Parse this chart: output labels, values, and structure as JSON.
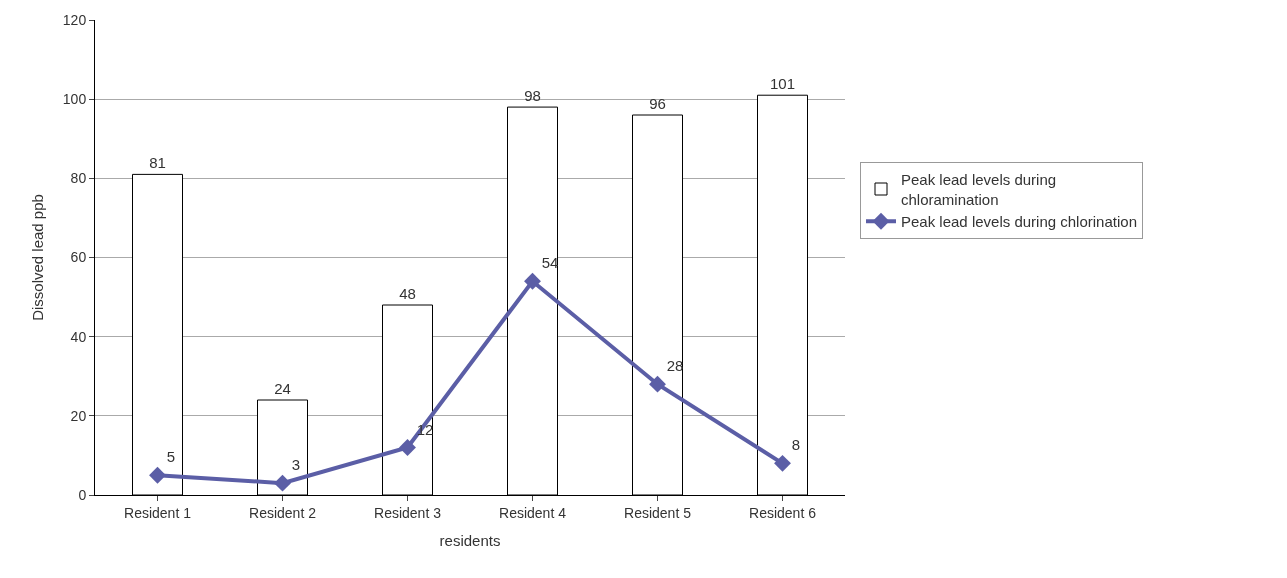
{
  "chart_data": {
    "type": "bar",
    "xlabel": "residents",
    "ylabel": "Dissolved lead ppb",
    "categories": [
      "Resident 1",
      "Resident 2",
      "Resident 3",
      "Resident 4",
      "Resident 5",
      "Resident 6"
    ],
    "series": [
      {
        "name": "Peak lead levels during chloramination",
        "color": "#ffffff",
        "values": [
          81,
          24,
          48,
          98,
          96,
          101
        ]
      },
      {
        "name": "Peak lead levels during chlorination",
        "type": "line",
        "color": "#5b5ea6",
        "values": [
          5,
          3,
          12,
          54,
          28,
          8
        ]
      }
    ],
    "ylim": [
      0,
      120
    ],
    "yticks": [
      0,
      20,
      40,
      60,
      80,
      100,
      120
    ],
    "grid": "y",
    "legend": "right",
    "data_labels": true,
    "marker": "diamond"
  }
}
